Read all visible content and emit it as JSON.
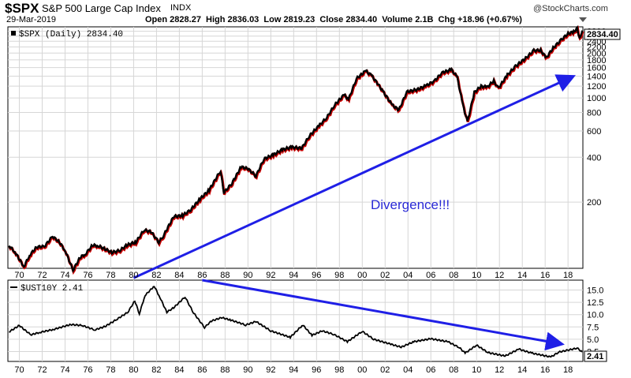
{
  "header": {
    "symbol": "$SPX",
    "name": "S&P 500 Large Cap Index",
    "exchange": "INDX",
    "date": "29-Mar-2019",
    "quote_line": "Open 2828.27  High 2836.03  Low 2819.23  Close 2834.40  Volume 2.1B  Chg +18.96 (+0.67%)",
    "watermark": "@StockCharts.com",
    "settings_icon": "triangle-down-icon"
  },
  "colors": {
    "price_line": "#000000",
    "price_down": "#cc0000",
    "arrow": "#1f1fe6",
    "annotation": "#2a2ad6",
    "grid": "#d6d6d6",
    "frame": "#000000"
  },
  "chart_data": [
    {
      "type": "line",
      "panel": "top",
      "legend": "$SPX (Daily) 2834.40",
      "last_value_label": "2834.40",
      "y_scale": "log",
      "ylim": [
        72,
        3000
      ],
      "y_ticks": [
        "2800",
        "2600",
        "2400",
        "2200",
        "2000",
        "1800",
        "1600",
        "1400",
        "1200",
        "1000",
        "800",
        "600",
        "400",
        "200"
      ],
      "x_ticks": [
        "70",
        "72",
        "74",
        "76",
        "78",
        "80",
        "82",
        "84",
        "86",
        "88",
        "90",
        "92",
        "94",
        "96",
        "98",
        "00",
        "02",
        "04",
        "06",
        "08",
        "10",
        "12",
        "14",
        "16",
        "18"
      ],
      "grid": true,
      "annotation": "Divergence!!!",
      "arrow": {
        "from": [
          1980.0,
          62
        ],
        "to": [
          2018.3,
          1380
        ]
      },
      "series": [
        {
          "x": [
            1969.1,
            1969.6,
            1970.4,
            1970.9,
            1971.5,
            1972.2,
            1972.9,
            1973.5,
            1974.0,
            1974.7,
            1975.3,
            1975.8,
            1976.4,
            1976.9,
            1977.5,
            1978.1,
            1978.8,
            1979.4,
            1980.2,
            1980.9,
            1981.5,
            1982.2,
            1982.6,
            1983.5,
            1984.3,
            1985.0,
            1985.8,
            1986.6,
            1987.6,
            1987.9,
            1988.6,
            1989.4,
            1990.0,
            1990.7,
            1991.4,
            1992.2,
            1993.0,
            1993.8,
            1994.7,
            1995.4,
            1996.2,
            1996.9,
            1997.6,
            1998.4,
            1998.8,
            1999.5,
            2000.3,
            2000.8,
            2001.4,
            2001.8,
            2002.6,
            2003.2,
            2003.9,
            2004.8,
            2005.6,
            2006.3,
            2007.0,
            2007.8,
            2008.3,
            2008.8,
            2009.2,
            2009.8,
            2010.4,
            2010.9,
            2011.5,
            2011.9,
            2012.7,
            2013.4,
            2014.3,
            2015.0,
            2015.6,
            2016.1,
            2016.7,
            2017.4,
            2018.0,
            2018.5,
            2018.8,
            2019.0,
            2019.25
          ],
          "values": [
            102,
            93,
            74,
            88,
            100,
            101,
            118,
            108,
            95,
            70,
            85,
            90,
            103,
            102,
            97,
            92,
            95,
            103,
            108,
            130,
            127,
            108,
            119,
            160,
            163,
            178,
            210,
            241,
            325,
            232,
            268,
            345,
            335,
            300,
            390,
            415,
            450,
            468,
            460,
            560,
            650,
            740,
            900,
            1050,
            980,
            1350,
            1520,
            1420,
            1230,
            1110,
            900,
            830,
            1100,
            1140,
            1210,
            1300,
            1480,
            1550,
            1380,
            900,
            690,
            1090,
            1200,
            1180,
            1300,
            1160,
            1430,
            1630,
            1850,
            2080,
            2090,
            1860,
            2170,
            2450,
            2700,
            2780,
            2920,
            2500,
            2834
          ]
        }
      ]
    },
    {
      "type": "line",
      "panel": "bottom",
      "legend": "$UST10Y 2.41",
      "last_value_label": "2.41",
      "ylim": [
        0.5,
        17
      ],
      "y_ticks": [
        "15.0",
        "12.5",
        "10.0",
        "7.5",
        "5.0",
        "2.5"
      ],
      "x_ticks": [
        "70",
        "72",
        "74",
        "76",
        "78",
        "80",
        "82",
        "84",
        "86",
        "88",
        "90",
        "92",
        "94",
        "96",
        "98",
        "00",
        "02",
        "04",
        "06",
        "08",
        "10",
        "12",
        "14",
        "16",
        "18"
      ],
      "grid": true,
      "arrow": {
        "from": [
          1986.0,
          17.0
        ],
        "to": [
          2017.3,
          4.1
        ]
      },
      "series": [
        {
          "x": [
            1969.1,
            1970.0,
            1971.0,
            1971.8,
            1973.0,
            1974.5,
            1975.5,
            1976.6,
            1977.5,
            1978.5,
            1979.5,
            1980.1,
            1980.5,
            1981.0,
            1981.8,
            1982.3,
            1982.9,
            1983.5,
            1984.5,
            1985.2,
            1986.2,
            1986.8,
            1987.7,
            1988.5,
            1989.8,
            1990.7,
            1992.0,
            1993.7,
            1994.8,
            1995.6,
            1996.5,
            1997.5,
            1998.7,
            2000.0,
            2001.0,
            2002.5,
            2003.4,
            2004.5,
            2006.0,
            2007.5,
            2008.5,
            2009.0,
            2010.0,
            2011.0,
            2012.5,
            2013.7,
            2014.8,
            2016.5,
            2017.2,
            2018.8,
            2019.25
          ],
          "values": [
            6.5,
            7.8,
            5.9,
            6.4,
            7.0,
            8.0,
            7.8,
            6.9,
            7.6,
            9.0,
            10.5,
            12.8,
            10.2,
            13.9,
            15.8,
            13.5,
            10.5,
            11.4,
            13.6,
            10.5,
            7.4,
            8.7,
            9.4,
            8.9,
            7.9,
            8.6,
            6.7,
            5.4,
            7.9,
            5.8,
            6.7,
            6.0,
            4.5,
            6.6,
            5.0,
            4.0,
            3.4,
            4.5,
            5.1,
            4.5,
            3.3,
            2.2,
            3.8,
            2.3,
            1.6,
            3.0,
            2.2,
            1.4,
            2.4,
            3.2,
            2.41
          ]
        }
      ]
    }
  ]
}
